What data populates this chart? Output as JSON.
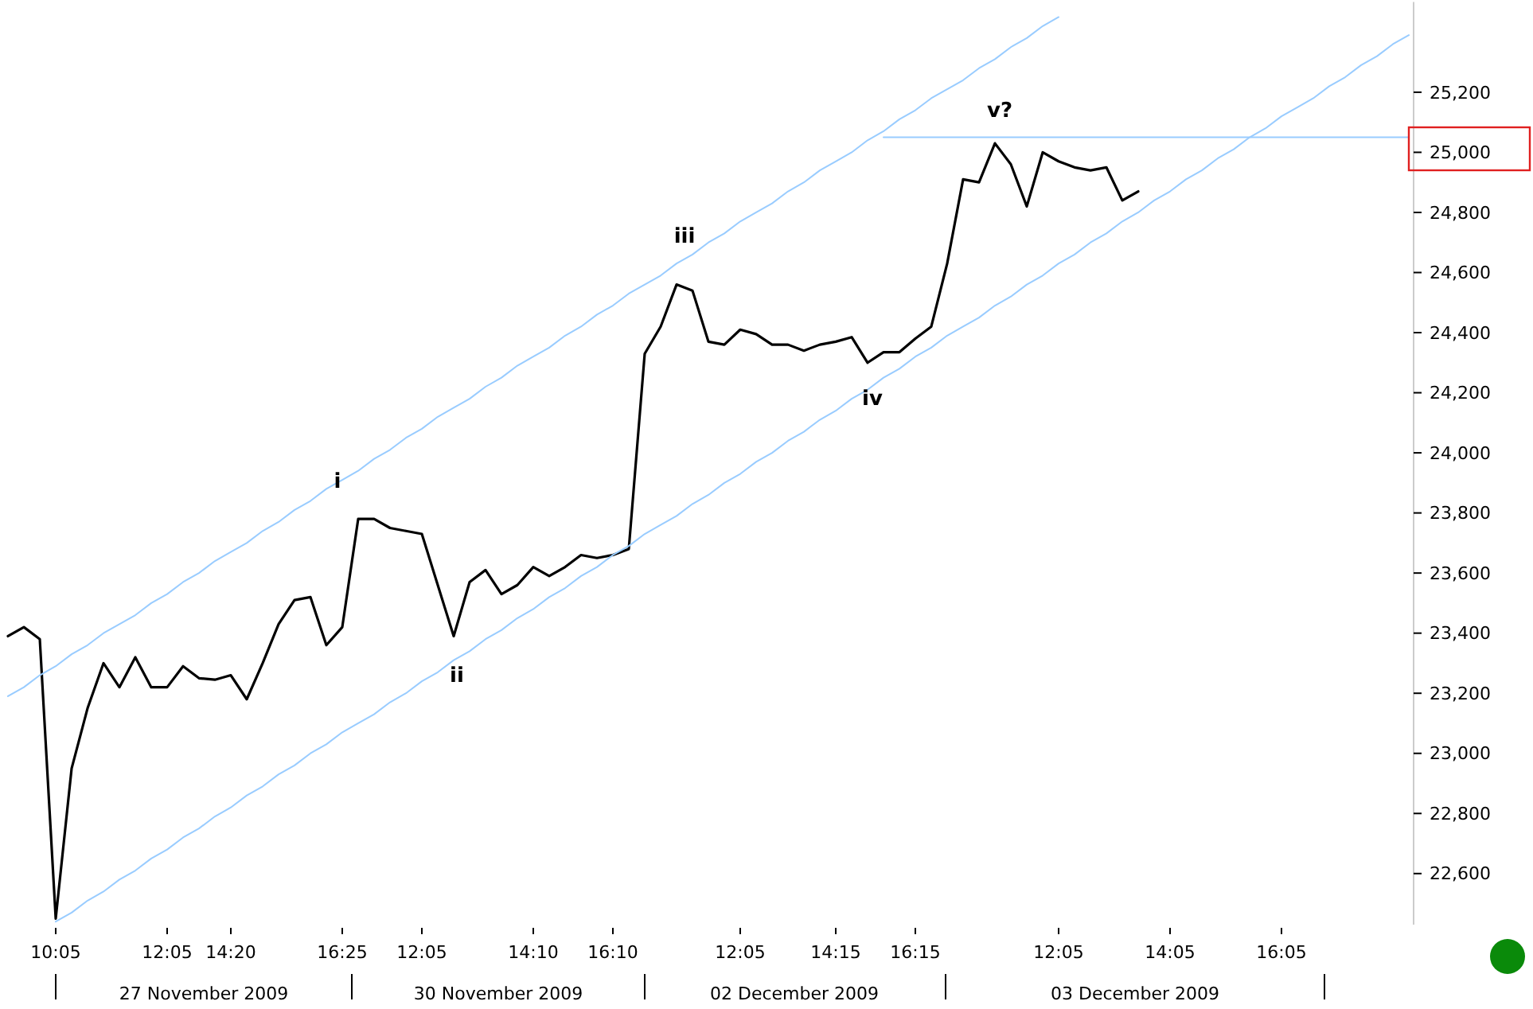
{
  "chart_data": {
    "type": "line",
    "ylim": [
      22430,
      25500
    ],
    "categories": [
      null,
      null,
      null,
      "10:05",
      null,
      null,
      null,
      null,
      null,
      null,
      "12:05",
      null,
      null,
      null,
      "14:20",
      null,
      null,
      null,
      null,
      null,
      null,
      "16:25",
      null,
      null,
      null,
      null,
      "12:05",
      null,
      null,
      null,
      null,
      null,
      null,
      "14:10",
      null,
      null,
      null,
      null,
      "16:10",
      null,
      null,
      null,
      null,
      null,
      null,
      null,
      "12:05",
      null,
      null,
      null,
      null,
      null,
      "14:15",
      null,
      null,
      null,
      null,
      "16:15",
      null,
      null,
      null,
      null,
      null,
      null,
      null,
      null,
      "12:05",
      null,
      null,
      null,
      null,
      null,
      null,
      "14:05",
      null,
      null,
      null,
      null,
      null,
      null,
      "16:05",
      null,
      null,
      null,
      null,
      null,
      null,
      null,
      null
    ],
    "yticks": [
      {
        "value": 22600,
        "label": "22,600"
      },
      {
        "value": 22800,
        "label": "22,800"
      },
      {
        "value": 23000,
        "label": "23,000"
      },
      {
        "value": 23200,
        "label": "23,200"
      },
      {
        "value": 23400,
        "label": "23,400"
      },
      {
        "value": 23600,
        "label": "23,600"
      },
      {
        "value": 23800,
        "label": "23,800"
      },
      {
        "value": 24000,
        "label": "24,000"
      },
      {
        "value": 24200,
        "label": "24,200"
      },
      {
        "value": 24400,
        "label": "24,400"
      },
      {
        "value": 24600,
        "label": "24,600"
      },
      {
        "value": 24800,
        "label": "24,800"
      },
      {
        "value": 25000,
        "label": "25,000"
      },
      {
        "value": 25200,
        "label": "25,200"
      }
    ],
    "grid": false,
    "marker": "none",
    "line_style": "solid",
    "series": [
      {
        "color": "#000000",
        "values": [
          23390,
          23420,
          23380,
          22450,
          22950,
          23150,
          23300,
          23220,
          23320,
          23220,
          23220,
          23290,
          23250,
          23245,
          23260,
          23180,
          23300,
          23430,
          23510,
          23520,
          23360,
          23420,
          23780,
          23780,
          23750,
          23740,
          23730,
          23560,
          23390,
          23570,
          23610,
          23530,
          23560,
          23620,
          23590,
          23620,
          23660,
          23650,
          23660,
          23680,
          24330,
          24420,
          24560,
          24540,
          24370,
          24360,
          24410,
          24395,
          24360,
          24360,
          24340,
          24360,
          24370,
          24385,
          24300,
          24335,
          24335,
          24380,
          24420,
          24630,
          24910,
          24900,
          25030,
          24960,
          24820,
          25000,
          24970,
          24950,
          24940,
          24950,
          24840,
          24870,
          null,
          null,
          null,
          null,
          null,
          null,
          null,
          null,
          null,
          null,
          null,
          null,
          null,
          null,
          null,
          null,
          null
        ]
      },
      {
        "color": "#99ccff",
        "values": [
          23190,
          23220,
          23260,
          23290,
          23330,
          23360,
          23400,
          23430,
          23460,
          23500,
          23530,
          23570,
          23600,
          23640,
          23670,
          23700,
          23740,
          23770,
          23810,
          23840,
          23880,
          23910,
          23940,
          23980,
          24010,
          24050,
          24080,
          24120,
          24150,
          24180,
          24220,
          24250,
          24290,
          24320,
          24350,
          24390,
          24420,
          24460,
          24490,
          24530,
          24560,
          24590,
          24630,
          24660,
          24700,
          24730,
          24770,
          24800,
          24830,
          24870,
          24900,
          24940,
          24970,
          25000,
          25040,
          25070,
          25110,
          25140,
          25180,
          25210,
          25240,
          25280,
          25310,
          25350,
          25380,
          25420,
          25450,
          null,
          null,
          null,
          null,
          null,
          null,
          null,
          null,
          null,
          null,
          null,
          null,
          null,
          null,
          null,
          null,
          null,
          null,
          null,
          null,
          null,
          null
        ]
      },
      {
        "color": "#99ccff",
        "values": [
          null,
          null,
          null,
          22440,
          22470,
          22510,
          22540,
          22580,
          22610,
          22650,
          22680,
          22720,
          22750,
          22790,
          22820,
          22860,
          22890,
          22930,
          22960,
          23000,
          23030,
          23070,
          23100,
          23130,
          23170,
          23200,
          23240,
          23270,
          23310,
          23340,
          23380,
          23410,
          23450,
          23480,
          23520,
          23550,
          23590,
          23620,
          23660,
          23690,
          23730,
          23760,
          23790,
          23830,
          23860,
          23900,
          23930,
          23970,
          24000,
          24040,
          24070,
          24110,
          24140,
          24180,
          24210,
          24250,
          24280,
          24320,
          24350,
          24390,
          24420,
          24450,
          24490,
          24520,
          24560,
          24590,
          24630,
          24660,
          24700,
          24730,
          24770,
          24800,
          24840,
          24870,
          24910,
          24940,
          24980,
          25010,
          25050,
          25080,
          25120,
          25150,
          25180,
          25220,
          25250,
          25290,
          25320,
          25360,
          25390
        ]
      },
      {
        "color": "#99ccff",
        "values": [
          null,
          null,
          null,
          null,
          null,
          null,
          null,
          null,
          null,
          null,
          null,
          null,
          null,
          null,
          null,
          null,
          null,
          null,
          null,
          null,
          null,
          null,
          null,
          null,
          null,
          null,
          null,
          null,
          null,
          null,
          null,
          null,
          null,
          null,
          null,
          null,
          null,
          null,
          null,
          null,
          null,
          null,
          null,
          null,
          null,
          null,
          null,
          null,
          null,
          null,
          null,
          null,
          null,
          null,
          null,
          25050,
          25050,
          25050,
          25050,
          25050,
          25050,
          25050,
          25050,
          25050,
          25050,
          25050,
          25050,
          25050,
          25050,
          25050,
          25050,
          25050,
          25050,
          25050,
          25050,
          25050,
          25050,
          25050,
          25050,
          25050,
          25050,
          25050,
          25050,
          25050,
          25050,
          25050,
          25050,
          25050,
          25050
        ]
      }
    ],
    "annotations": [
      "i",
      "ii",
      "iii",
      "iv",
      "v?",
      "27 November 2009",
      "30 November 2009",
      "02 December 2009",
      "03 December 2009"
    ]
  }
}
